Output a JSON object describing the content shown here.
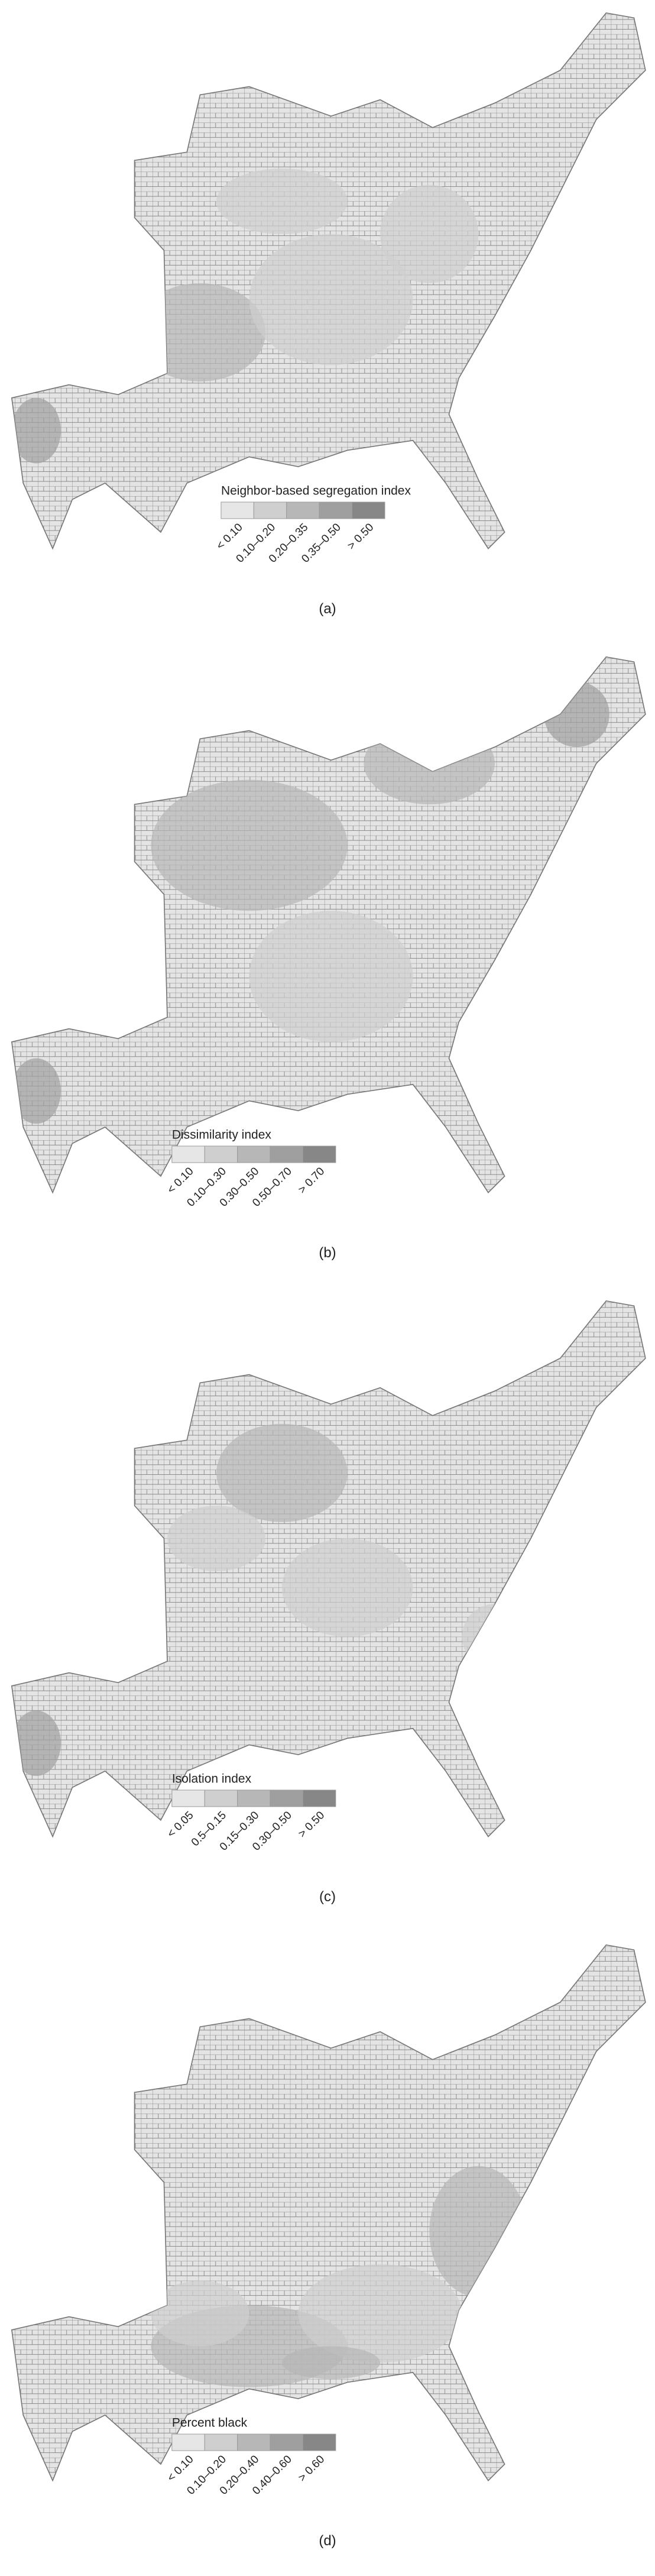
{
  "legend_colors": [
    "#e6e6e6",
    "#cfcfcf",
    "#b7b7b7",
    "#9f9f9f",
    "#878787"
  ],
  "panels": [
    {
      "legend_title": "Neighbor-based segregation index",
      "legend_labels": [
        "< 0.10",
        "0.10–0.20",
        "0.20–0.35",
        "0.35–0.50",
        "> 0.50"
      ],
      "caption": "(a)"
    },
    {
      "legend_title": "Dissimilarity index",
      "legend_labels": [
        "< 0.10",
        "0.10–0.30",
        "0.30–0.50",
        "0.50–0.70",
        "> 0.70"
      ],
      "caption": "(b)"
    },
    {
      "legend_title": "Isolation index",
      "legend_labels": [
        "< 0.05",
        "0.5–0.15",
        "0.15–0.30",
        "0.30–0.50",
        "> 0.50"
      ],
      "caption": "(c)"
    },
    {
      "legend_title": "Percent black",
      "legend_labels": [
        "< 0.10",
        "0.10–0.20",
        "0.20–0.40",
        "0.40–0.60",
        "> 0.60"
      ],
      "caption": "(d)"
    }
  ]
}
